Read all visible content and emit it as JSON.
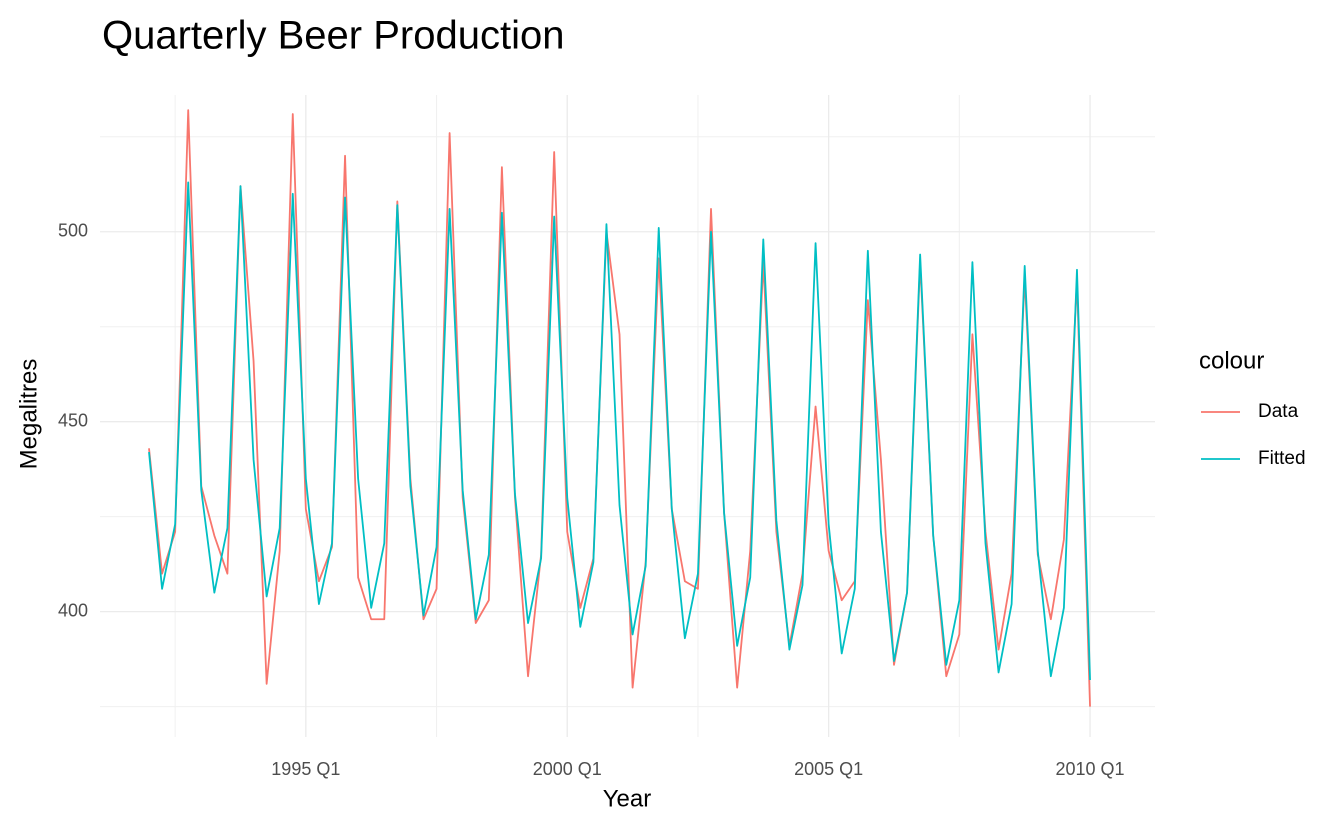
{
  "chart_data": {
    "type": "line",
    "title": "Quarterly Beer Production",
    "x_label": "Year",
    "y_label": "Megalitres",
    "legend_title": "colour",
    "legend_position": "right",
    "grid": true,
    "x": [
      "1992 Q1",
      "1992 Q2",
      "1992 Q3",
      "1992 Q4",
      "1993 Q1",
      "1993 Q2",
      "1993 Q3",
      "1993 Q4",
      "1994 Q1",
      "1994 Q2",
      "1994 Q3",
      "1994 Q4",
      "1995 Q1",
      "1995 Q2",
      "1995 Q3",
      "1995 Q4",
      "1996 Q1",
      "1996 Q2",
      "1996 Q3",
      "1996 Q4",
      "1997 Q1",
      "1997 Q2",
      "1997 Q3",
      "1997 Q4",
      "1998 Q1",
      "1998 Q2",
      "1998 Q3",
      "1998 Q4",
      "1999 Q1",
      "1999 Q2",
      "1999 Q3",
      "1999 Q4",
      "2000 Q1",
      "2000 Q2",
      "2000 Q3",
      "2000 Q4",
      "2001 Q1",
      "2001 Q2",
      "2001 Q3",
      "2001 Q4",
      "2002 Q1",
      "2002 Q2",
      "2002 Q3",
      "2002 Q4",
      "2003 Q1",
      "2003 Q2",
      "2003 Q3",
      "2003 Q4",
      "2004 Q1",
      "2004 Q2",
      "2004 Q3",
      "2004 Q4",
      "2005 Q1",
      "2005 Q2",
      "2005 Q3",
      "2005 Q4",
      "2006 Q1",
      "2006 Q2",
      "2006 Q3",
      "2006 Q4",
      "2007 Q1",
      "2007 Q2",
      "2007 Q3",
      "2007 Q4",
      "2008 Q1",
      "2008 Q2",
      "2008 Q3",
      "2008 Q4",
      "2009 Q1",
      "2009 Q2",
      "2009 Q3",
      "2009 Q4",
      "2010 Q1"
    ],
    "xticks": [
      "1995 Q1",
      "2000 Q1",
      "2005 Q1",
      "2010 Q1"
    ],
    "ylim": [
      367,
      536
    ],
    "yticks": [
      400,
      450,
      500
    ],
    "series": [
      {
        "name": "Data",
        "color": "#f8766d",
        "values": [
          443,
          410,
          421,
          532,
          433,
          420,
          410,
          512,
          466,
          381,
          416,
          531,
          427,
          408,
          417,
          520,
          409,
          398,
          398,
          508,
          435,
          398,
          406,
          526,
          430,
          397,
          403,
          517,
          430,
          383,
          415,
          521,
          421,
          401,
          414,
          500,
          473,
          380,
          413,
          493,
          427,
          408,
          406,
          506,
          426,
          380,
          416,
          492,
          421,
          391,
          410,
          454,
          416,
          403,
          408,
          482,
          440,
          386,
          405,
          492,
          420,
          383,
          394,
          473,
          421,
          390,
          410,
          488,
          415,
          398,
          419,
          487,
          375
        ]
      },
      {
        "name": "Fitted",
        "color": "#00bfc4",
        "values": [
          442,
          406,
          423,
          513,
          432,
          405,
          422,
          512,
          440,
          404,
          422,
          510,
          435,
          402,
          418,
          509,
          435,
          401,
          418,
          507,
          433,
          399,
          417,
          506,
          432,
          398,
          415,
          505,
          431,
          397,
          414,
          504,
          430,
          396,
          413,
          502,
          428,
          394,
          412,
          501,
          427,
          393,
          410,
          500,
          426,
          391,
          409,
          498,
          424,
          390,
          407,
          497,
          423,
          389,
          406,
          495,
          421,
          387,
          405,
          494,
          420,
          386,
          403,
          492,
          418,
          384,
          402,
          491,
          416,
          383,
          401,
          490,
          382
        ]
      }
    ]
  }
}
